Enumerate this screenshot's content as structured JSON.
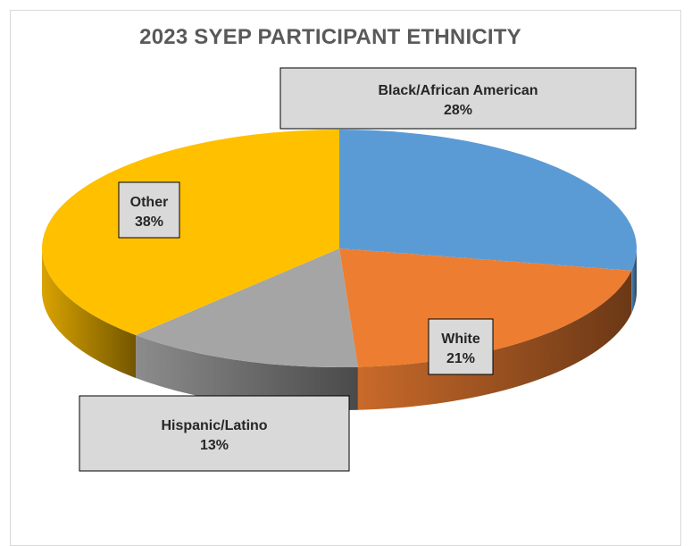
{
  "chart_data": {
    "type": "pie",
    "style": "3d",
    "title": "2023 SYEP PARTICIPANT ETHNICITY",
    "legend": "none",
    "slices": [
      {
        "label": "Black/African American",
        "value": 28,
        "display": "28%",
        "color": "#5b9bd5"
      },
      {
        "label": "White",
        "value": 21,
        "display": "21%",
        "color": "#ed7d31"
      },
      {
        "label": "Hispanic/Latino",
        "value": 13,
        "display": "13%",
        "color": "#a5a5a5"
      },
      {
        "label": "Other",
        "value": 38,
        "display": "38%",
        "color": "#ffc000"
      }
    ]
  }
}
